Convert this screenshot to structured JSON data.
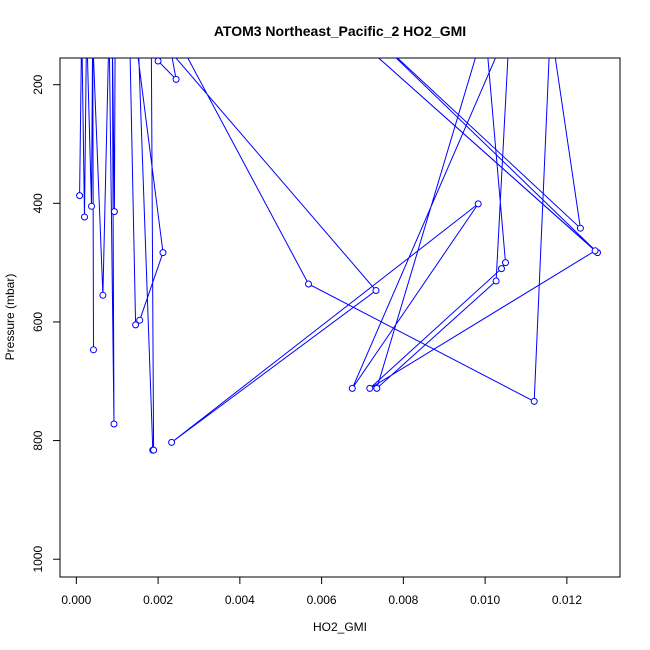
{
  "chart_data": {
    "type": "line",
    "title": "ATOM3 Northeast_Pacific_2 HO2_GMI",
    "xlabel": "HO2_GMI",
    "ylabel": "Pressure (mbar)",
    "xlim": [
      -0.0004,
      0.0133
    ],
    "ylim": [
      1030,
      155
    ],
    "y_reversed": true,
    "x_ticks": [
      0.0,
      0.002,
      0.004,
      0.006,
      0.008,
      0.01,
      0.012
    ],
    "x_tick_labels": [
      "0.000",
      "0.002",
      "0.004",
      "0.006",
      "0.008",
      "0.010",
      "0.012"
    ],
    "y_ticks": [
      200,
      400,
      600,
      800,
      1000
    ],
    "y_tick_labels": [
      "200",
      "400",
      "600",
      "800",
      "1000"
    ],
    "grid": false,
    "legend": "none",
    "line_color": "#0000ff",
    "series": [
      {
        "x": [
          8e-05,
          0.00013,
          0.0002,
          0.00025,
          0.00037,
          0.0004,
          0.00042,
          0.0004,
          0.00065,
          0.0008,
          0.00092,
          0.00088,
          0.00093,
          0.00095,
          0.00097,
          0.0009,
          0.0013,
          0.00145,
          0.00155,
          0.00212,
          0.00141,
          0.00143,
          0.0015,
          0.00187,
          0.00189,
          0.00183,
          0.00172,
          0.002,
          0.00244,
          0.0022,
          0.0023,
          0.00568,
          0.0112,
          0.0116,
          0.01233,
          0.007,
          0.01275,
          0.0065,
          0.01269,
          0.00718,
          0.0104,
          0.0105,
          0.01,
          0.00735,
          0.01027,
          0.0106,
          0.00675,
          0.00983,
          0.00233,
          0.00733,
          0.00175
        ],
        "y": [
          387,
          100,
          423,
          100,
          405,
          100,
          647,
          120,
          555,
          100,
          772,
          110,
          414,
          100,
          100,
          100,
          100,
          605,
          597,
          483,
          100,
          100,
          100,
          816,
          816,
          100,
          100,
          160,
          191,
          100,
          100,
          536,
          734,
          100,
          442,
          100,
          483,
          100,
          480,
          712,
          510,
          500,
          100,
          712,
          531,
          100,
          712,
          401,
          803,
          547,
          100
        ]
      }
    ]
  }
}
